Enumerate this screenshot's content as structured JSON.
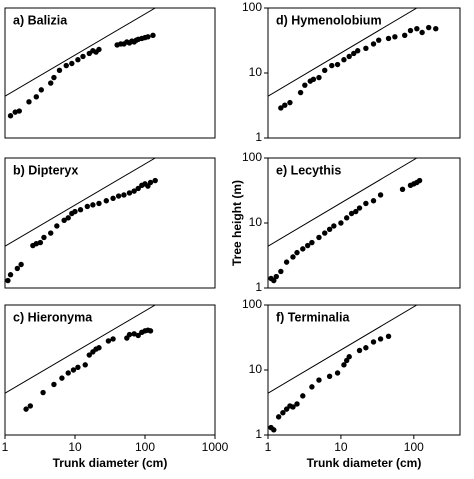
{
  "chart_data": [
    {
      "type": "scatter",
      "title": "a) Balizia",
      "color": "#000000",
      "log_scale": true,
      "xlim": [
        1,
        1000
      ],
      "ylim": [
        1,
        100
      ],
      "x": [
        1.2,
        1.4,
        1.6,
        2.2,
        2.8,
        3.3,
        4.5,
        5,
        6,
        7.5,
        9,
        11,
        13,
        16,
        18,
        20,
        22,
        40,
        45,
        50,
        55,
        60,
        65,
        70,
        75,
        80,
        90,
        100,
        110,
        130
      ],
      "values": [
        2.2,
        2.5,
        2.6,
        3.6,
        4.3,
        5.5,
        7,
        8.5,
        11,
        13,
        14,
        16,
        18,
        20,
        22,
        21,
        23,
        27,
        28,
        28,
        30,
        29,
        31,
        30,
        32,
        33,
        34,
        35,
        36,
        38
      ],
      "reference_line": {
        "x": [
          1,
          140
        ],
        "y": [
          4.4,
          100
        ]
      }
    },
    {
      "type": "scatter",
      "title": "b) Dipteryx",
      "color": "#000000",
      "log_scale": true,
      "xlim": [
        1,
        1000
      ],
      "ylim": [
        1,
        100
      ],
      "x": [
        1.1,
        1.2,
        1.5,
        1.7,
        2.5,
        2.8,
        3.2,
        3.6,
        4.5,
        5.5,
        7,
        8,
        9,
        10,
        12,
        15,
        18,
        22,
        28,
        35,
        42,
        50,
        60,
        70,
        80,
        90,
        100,
        110,
        120,
        140
      ],
      "values": [
        1.3,
        1.6,
        2,
        2.3,
        4.5,
        4.8,
        5,
        6,
        7,
        9,
        11,
        12,
        14,
        15,
        16,
        18,
        19,
        20,
        22,
        24,
        26,
        27,
        29,
        31,
        34,
        38,
        40,
        37,
        42,
        45
      ],
      "reference_line": {
        "x": [
          1,
          140
        ],
        "y": [
          4.4,
          100
        ]
      }
    },
    {
      "type": "scatter",
      "title": "c) Hieronyma",
      "color": "#000000",
      "log_scale": true,
      "xlim": [
        1,
        1000
      ],
      "ylim": [
        1,
        100
      ],
      "xticks": [
        1,
        10,
        100,
        1000
      ],
      "xlabel": "Trunk diameter (cm)",
      "x": [
        2,
        2.3,
        3.5,
        5,
        6.5,
        8,
        9.5,
        11,
        14,
        16,
        18,
        20,
        22,
        30,
        35,
        55,
        60,
        70,
        80,
        90,
        100,
        110,
        120
      ],
      "values": [
        2.5,
        2.8,
        4.5,
        6,
        7.5,
        9,
        10,
        11,
        12,
        17,
        19,
        21,
        22,
        28,
        30,
        31,
        35,
        36,
        34,
        38,
        40,
        41,
        40
      ],
      "reference_line": {
        "x": [
          1,
          140
        ],
        "y": [
          4.4,
          100
        ]
      }
    },
    {
      "type": "scatter",
      "title": "d) Hymenolobium",
      "color": "#000000",
      "log_scale": true,
      "xlim": [
        1,
        430
      ],
      "ylim": [
        1,
        100
      ],
      "yticks": [
        1,
        10,
        100
      ],
      "x": [
        1.5,
        1.7,
        2,
        2.8,
        3.2,
        3.8,
        4.2,
        5,
        6,
        7.5,
        9,
        11,
        13,
        15,
        17,
        22,
        28,
        33,
        45,
        55,
        75,
        90,
        110,
        130,
        160,
        200
      ],
      "values": [
        2.9,
        3.2,
        3.5,
        5,
        6.5,
        7.5,
        8,
        8.5,
        11,
        13,
        13.5,
        16,
        18,
        20,
        22,
        24,
        28,
        32,
        34,
        36,
        38,
        45,
        48,
        42,
        50,
        48
      ],
      "reference_line": {
        "x": [
          1,
          110
        ],
        "y": [
          4.4,
          100
        ]
      }
    },
    {
      "type": "scatter",
      "title": "e) Lecythis",
      "color": "#000000",
      "log_scale": true,
      "xlim": [
        1,
        430
      ],
      "ylim": [
        1,
        100
      ],
      "yticks": [
        1,
        10,
        100
      ],
      "ylabel": "Tree height (m)",
      "x": [
        1.1,
        1.2,
        1.3,
        1.5,
        1.8,
        2.2,
        2.5,
        3,
        3.5,
        4,
        5,
        6,
        7,
        8,
        10,
        12,
        14,
        16,
        18,
        22,
        28,
        35,
        70,
        90,
        100,
        110,
        120
      ],
      "values": [
        1.4,
        1.3,
        1.5,
        1.8,
        2.5,
        3,
        3.5,
        4,
        4.5,
        5,
        6,
        7,
        8,
        9,
        10,
        12,
        14,
        15,
        17,
        20,
        22,
        27,
        33,
        38,
        40,
        42,
        45
      ],
      "reference_line": {
        "x": [
          1,
          110
        ],
        "y": [
          4.4,
          100
        ]
      }
    },
    {
      "type": "scatter",
      "title": "f) Terminalia",
      "color": "#000000",
      "log_scale": true,
      "xlim": [
        1,
        430
      ],
      "ylim": [
        1,
        100
      ],
      "yticks": [
        1,
        10,
        100
      ],
      "xticks": [
        1,
        10,
        100
      ],
      "xlabel": "Trunk diameter (cm)",
      "x": [
        1.1,
        1.2,
        1.4,
        1.6,
        1.8,
        2,
        2.2,
        2.5,
        3,
        4,
        5,
        7,
        9,
        11,
        12,
        13,
        18,
        22,
        28,
        35,
        45
      ],
      "values": [
        1.3,
        1.2,
        1.9,
        2.2,
        2.5,
        2.8,
        2.7,
        3,
        4,
        5.5,
        7,
        8,
        9,
        12,
        14,
        16,
        20,
        22,
        27,
        30,
        33
      ],
      "reference_line": {
        "x": [
          1,
          110
        ],
        "y": [
          4.4,
          100
        ]
      }
    }
  ]
}
